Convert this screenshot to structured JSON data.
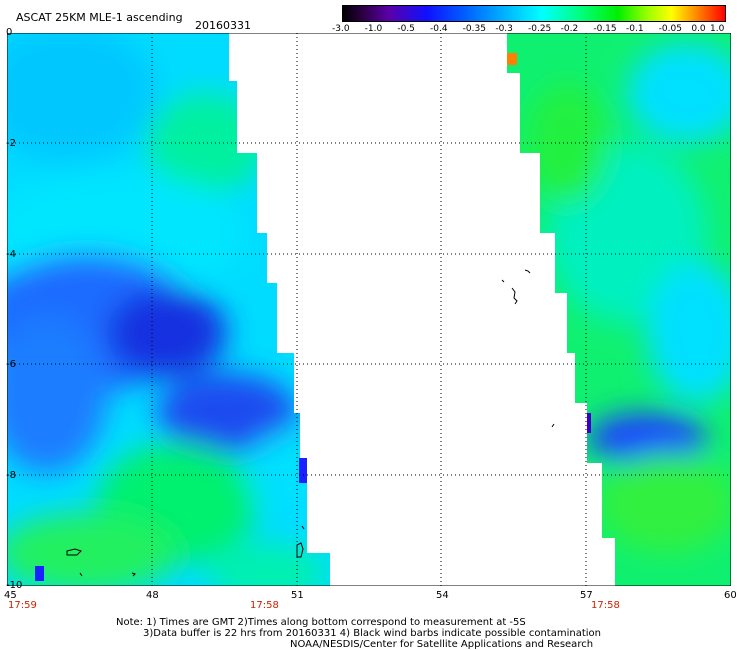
{
  "header": {
    "title": "ASCAT 25KM MLE-1 ascending",
    "date": "20160331"
  },
  "colorbar": {
    "ticks": [
      "-3.0",
      "-1.0",
      "-0.5",
      "-0.4",
      "-0.35",
      "-0.3",
      "-0.25",
      "-0.2",
      "-0.15",
      "-0.1",
      "-0.05",
      "0.0",
      "1.0"
    ]
  },
  "axes": {
    "y_labels": [
      "0",
      "-2",
      "-4",
      "-6",
      "-8",
      "-10"
    ],
    "x_labels": [
      "45",
      "48",
      "51",
      "54",
      "57",
      "60"
    ]
  },
  "times": [
    "17:59",
    "17:58",
    "17:58"
  ],
  "notes": {
    "line1": "Note: 1) Times are GMT 2)Times along bottom correspond to measurement at -5S",
    "line2": "3)Data buffer is 22 hrs from 20160331 4) Black wind barbs indicate possible contamination",
    "line3": "NOAA/NESDIS/Center for Satellite Applications and Research"
  },
  "map_colors": {
    "blue": "#1a3cff",
    "mid_blue": "#1a7dff",
    "cyan": "#00e8f0",
    "teal": "#00f0b0",
    "green": "#20f050",
    "bright_green": "#40ff00",
    "purple": "#3a00c8"
  }
}
